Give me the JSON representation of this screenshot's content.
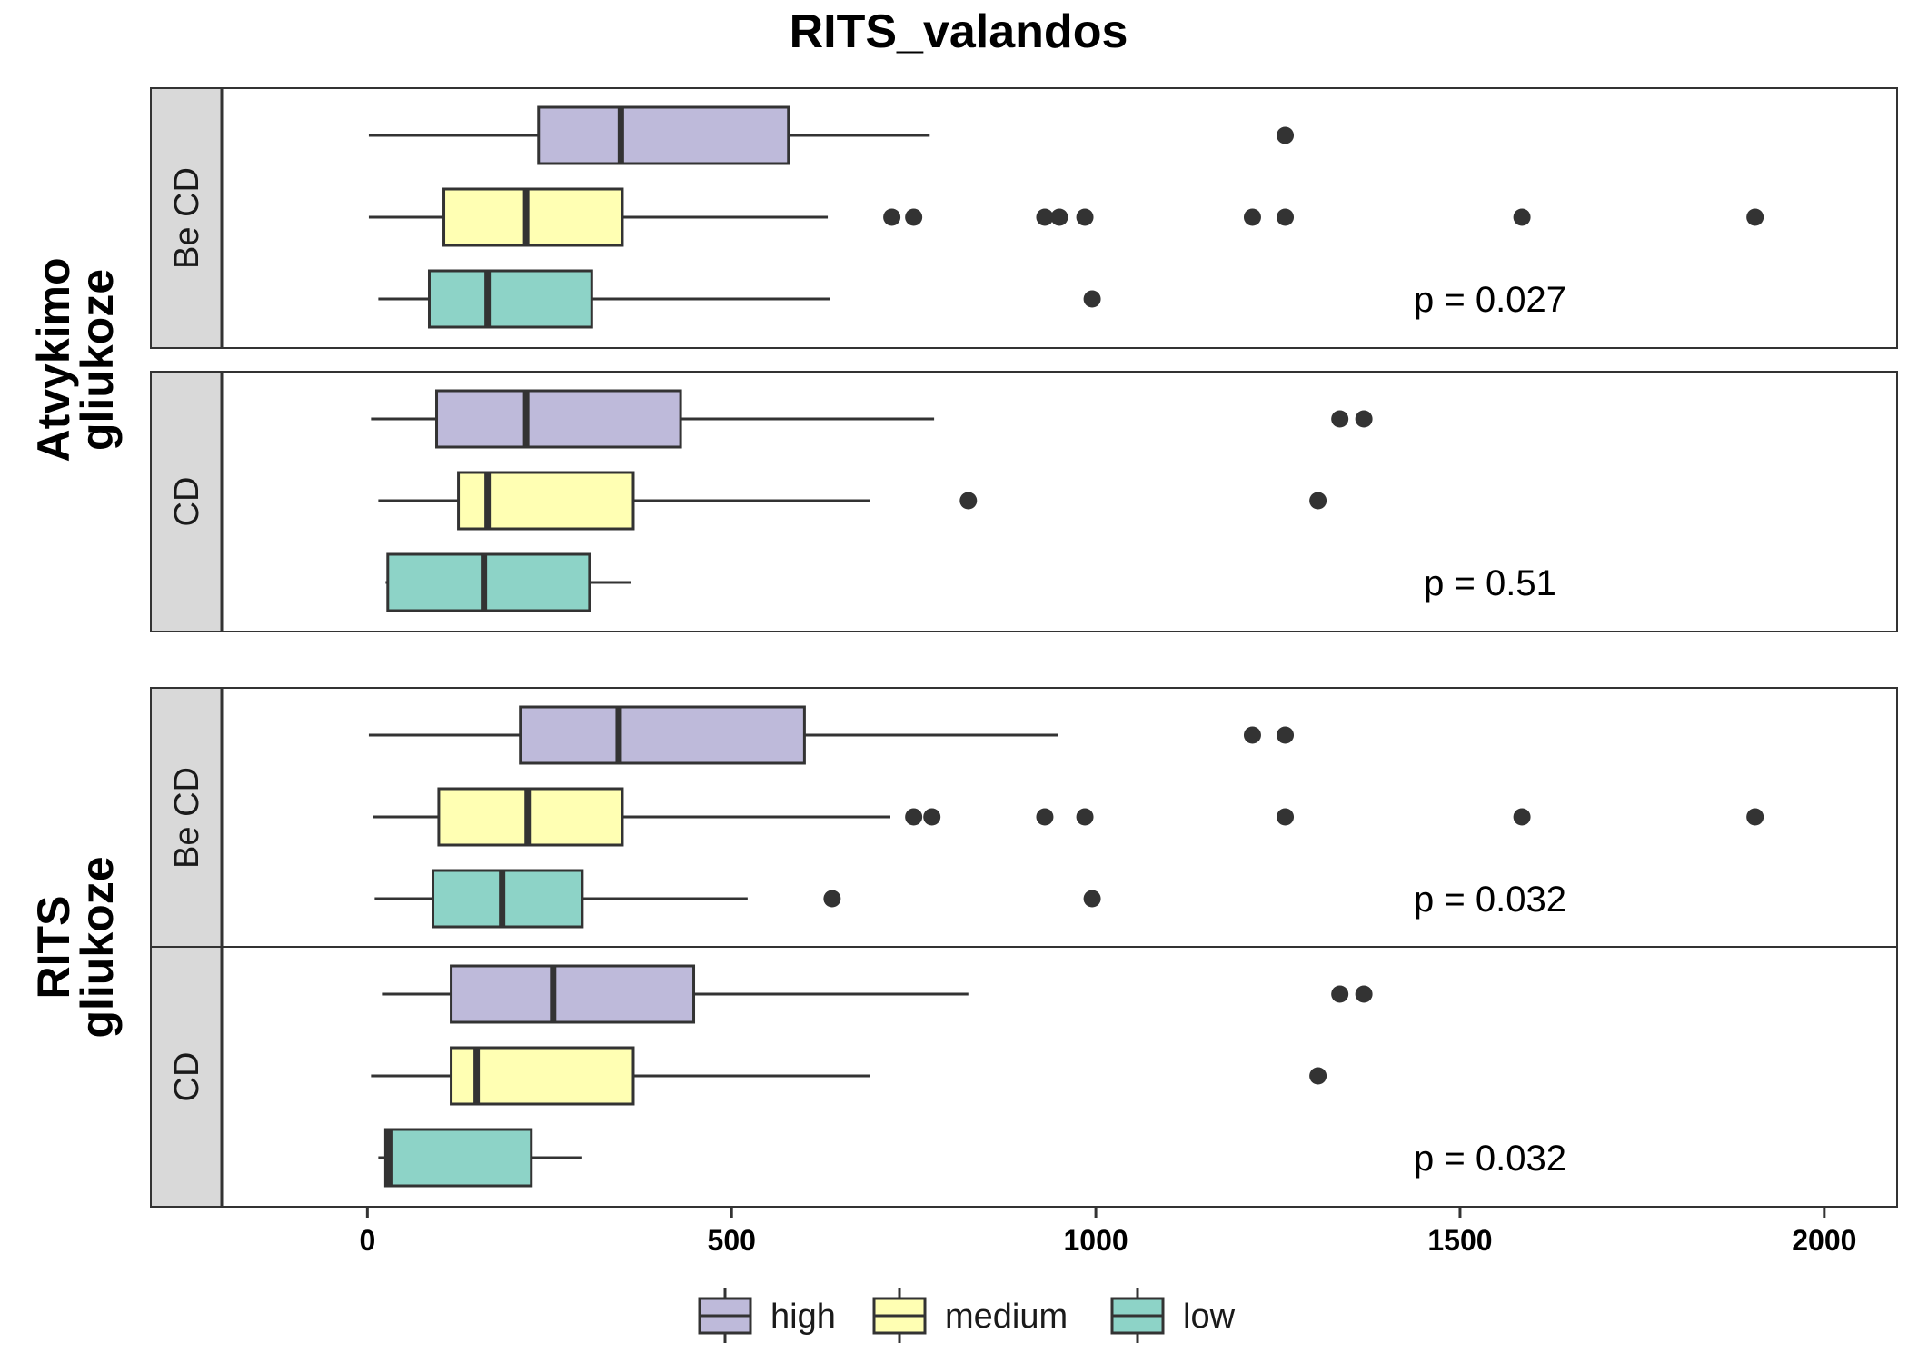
{
  "chart_data": {
    "type": "boxplot",
    "orientation": "horizontal",
    "title": "RITS_valandos",
    "xlim": [
      -200,
      2100
    ],
    "x_ticks": [
      0,
      500,
      1000,
      1500,
      2000
    ],
    "grid": false,
    "legend_position": "bottom",
    "categories": [
      "high",
      "medium",
      "low"
    ],
    "colors": {
      "high": "#bebada",
      "medium": "#ffffb3",
      "low": "#8dd3c7"
    },
    "groups": [
      {
        "label_lines": [
          "Atvykimo",
          "gliukoze"
        ],
        "panels": [
          {
            "strip": "Be CD",
            "p_label": "p = 0.027",
            "boxes": [
              {
                "category": "high",
                "whisker_low": 2,
                "q1": 235,
                "median": 348,
                "q3": 578,
                "whisker_high": 772,
                "outliers": [
                  1260
                ]
              },
              {
                "category": "medium",
                "whisker_low": 2,
                "q1": 105,
                "median": 218,
                "q3": 350,
                "whisker_high": 632,
                "outliers": [
                  720,
                  750,
                  930,
                  950,
                  985,
                  1215,
                  1260,
                  1585,
                  1905
                ]
              },
              {
                "category": "low",
                "whisker_low": 15,
                "q1": 85,
                "median": 165,
                "q3": 308,
                "whisker_high": 635,
                "outliers": [
                  995
                ]
              }
            ]
          },
          {
            "strip": "CD",
            "p_label": "p = 0.51",
            "boxes": [
              {
                "category": "high",
                "whisker_low": 5,
                "q1": 95,
                "median": 218,
                "q3": 430,
                "whisker_high": 778,
                "outliers": [
                  1335,
                  1368
                ]
              },
              {
                "category": "medium",
                "whisker_low": 15,
                "q1": 125,
                "median": 165,
                "q3": 365,
                "whisker_high": 690,
                "outliers": [
                  825,
                  1305
                ]
              },
              {
                "category": "low",
                "whisker_low": 25,
                "q1": 28,
                "median": 160,
                "q3": 305,
                "whisker_high": 362,
                "outliers": []
              }
            ]
          }
        ]
      },
      {
        "label_lines": [
          "RITS",
          "gliukoze"
        ],
        "panels": [
          {
            "strip": "Be CD",
            "p_label": "p = 0.032",
            "boxes": [
              {
                "category": "high",
                "whisker_low": 2,
                "q1": 210,
                "median": 345,
                "q3": 600,
                "whisker_high": 948,
                "outliers": [
                  1215,
                  1260
                ]
              },
              {
                "category": "medium",
                "whisker_low": 8,
                "q1": 98,
                "median": 220,
                "q3": 350,
                "whisker_high": 718,
                "outliers": [
                  750,
                  775,
                  930,
                  985,
                  1260,
                  1585,
                  1905
                ]
              },
              {
                "category": "low",
                "whisker_low": 10,
                "q1": 90,
                "median": 185,
                "q3": 295,
                "whisker_high": 522,
                "outliers": [
                  638,
                  995
                ]
              }
            ]
          },
          {
            "strip": "CD",
            "p_label": "p = 0.032",
            "boxes": [
              {
                "category": "high",
                "whisker_low": 20,
                "q1": 115,
                "median": 255,
                "q3": 448,
                "whisker_high": 825,
                "outliers": [
                  1335,
                  1368
                ]
              },
              {
                "category": "medium",
                "whisker_low": 5,
                "q1": 115,
                "median": 150,
                "q3": 365,
                "whisker_high": 690,
                "outliers": [
                  1305
                ]
              },
              {
                "category": "low",
                "whisker_low": 15,
                "q1": 25,
                "median": 30,
                "q3": 225,
                "whisker_high": 295,
                "outliers": []
              }
            ]
          }
        ]
      }
    ]
  }
}
